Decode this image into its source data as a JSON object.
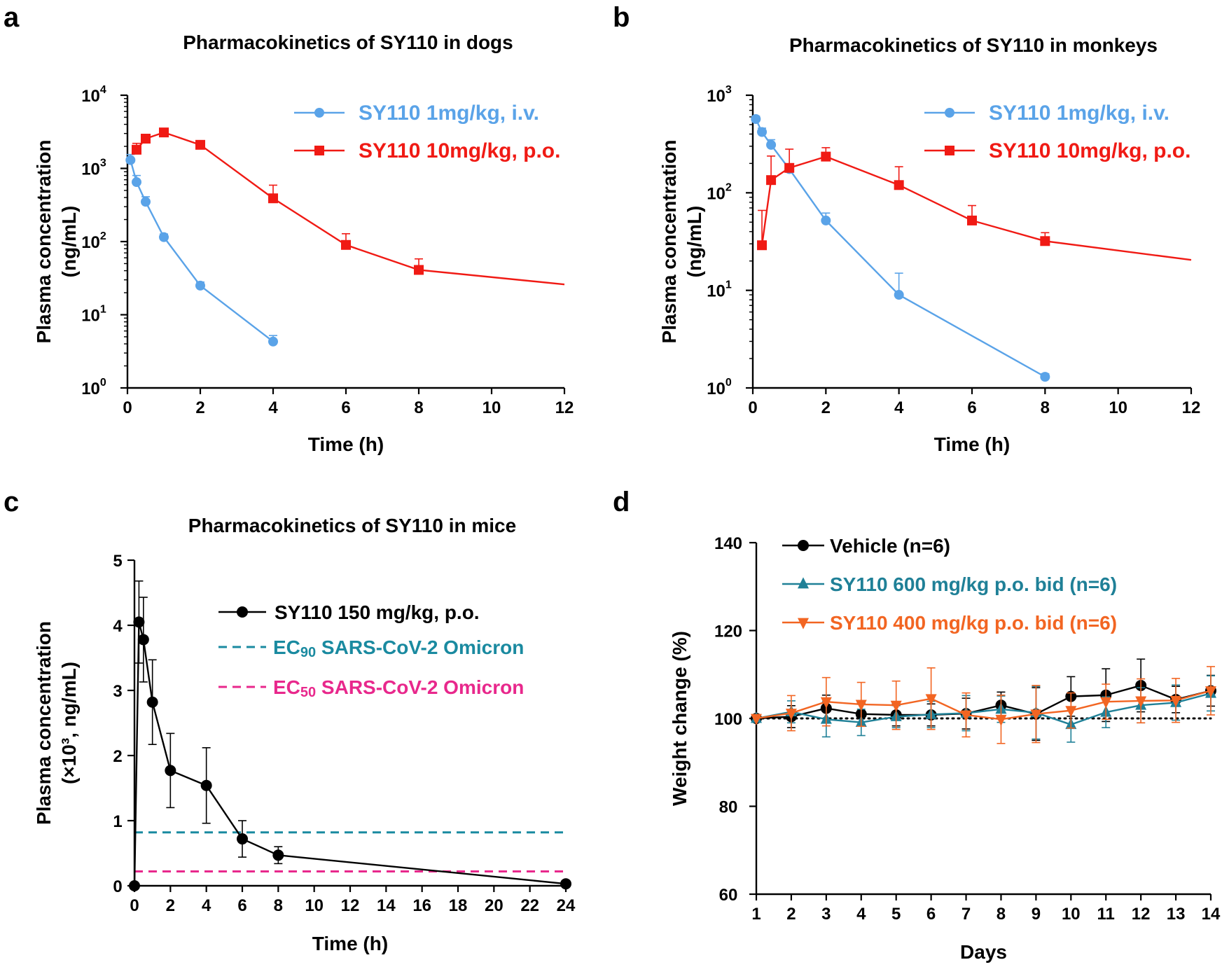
{
  "colors": {
    "axis": "#000000",
    "iv_blue": "#5aa3e8",
    "po_red": "#f01a14",
    "black": "#000000",
    "teal": "#1a8aa0",
    "pink": "#e8288c",
    "vehicle": "#000000",
    "sy600": "#1f8097",
    "sy400": "#f26522"
  },
  "chart_data": [
    {
      "id": "a",
      "panel_label": "a",
      "type": "line",
      "title": "Pharmacokinetics of SY110 in dogs",
      "xlabel": "Time (h)",
      "ylabel_line1": "Plasma  concentration",
      "ylabel_line2": "(ng/mL)",
      "yscale": "log",
      "xlim": [
        0,
        12
      ],
      "ylim": [
        1,
        10000
      ],
      "xticks": [
        0,
        2,
        4,
        6,
        8,
        10,
        12
      ],
      "ytick_labels": [
        {
          "value": 1,
          "base": "10",
          "exp": "0"
        },
        {
          "value": 10,
          "base": "10",
          "exp": "1"
        },
        {
          "value": 100,
          "base": "10",
          "exp": "2"
        },
        {
          "value": 1000,
          "base": "10",
          "exp": "3"
        },
        {
          "value": 10000,
          "base": "10",
          "exp": "4"
        }
      ],
      "series": [
        {
          "name": "SY110 1mg/kg, i.v.",
          "color": "#5aa3e8",
          "marker": "circle",
          "x": [
            0.083,
            0.25,
            0.5,
            1,
            2,
            4
          ],
          "y": [
            1300,
            650,
            350,
            115,
            25,
            4.3
          ],
          "err": [
            250,
            150,
            60,
            12,
            3,
            0.9
          ]
        },
        {
          "name": "SY110 10mg/kg, p.o.",
          "color": "#f01a14",
          "marker": "square",
          "x": [
            0.25,
            0.5,
            1,
            2,
            4,
            6,
            8
          ],
          "y": [
            1800,
            2550,
            3100,
            2100,
            390,
            90,
            41
          ],
          "err": [
            400,
            300,
            250,
            200,
            200,
            38,
            17
          ],
          "extend_to": [
            12,
            26
          ]
        }
      ]
    },
    {
      "id": "b",
      "panel_label": "b",
      "type": "line",
      "title": "Pharmacokinetics of SY110 in monkeys",
      "xlabel": "Time (h)",
      "ylabel_line1": "Plasma  concentration",
      "ylabel_line2": "(ng/mL)",
      "yscale": "log",
      "xlim": [
        0,
        12
      ],
      "ylim": [
        1,
        1000
      ],
      "xticks": [
        0,
        2,
        4,
        6,
        8,
        10,
        12
      ],
      "ytick_labels": [
        {
          "value": 1,
          "base": "10",
          "exp": "0"
        },
        {
          "value": 10,
          "base": "10",
          "exp": "1"
        },
        {
          "value": 100,
          "base": "10",
          "exp": "2"
        },
        {
          "value": 1000,
          "base": "10",
          "exp": "3"
        }
      ],
      "series": [
        {
          "name": "SY110 1mg/kg, i.v.",
          "color": "#5aa3e8",
          "marker": "circle",
          "x": [
            0.083,
            0.25,
            0.5,
            1,
            2,
            4,
            8
          ],
          "y": [
            570,
            420,
            310,
            175,
            52,
            9,
            1.3
          ],
          "err": [
            40,
            40,
            40,
            20,
            10,
            6,
            0.1
          ]
        },
        {
          "name": "SY110 10mg/kg, p.o.",
          "color": "#f01a14",
          "marker": "square",
          "x": [
            0.25,
            0.5,
            1,
            2,
            4,
            6,
            8
          ],
          "y": [
            29,
            135,
            180,
            235,
            120,
            52,
            32
          ],
          "err": [
            37,
            103,
            100,
            55,
            65,
            22,
            7
          ],
          "extend_to": [
            12,
            20.5
          ]
        }
      ]
    },
    {
      "id": "c",
      "panel_label": "c",
      "type": "line",
      "title": "Pharmacokinetics of SY110 in mice",
      "xlabel": "Time (h)",
      "ylabel_line1": "Plasma  concentration",
      "ylabel_line2": "(×10³, ng/mL)",
      "yscale": "linear",
      "xlim": [
        0,
        24
      ],
      "ylim": [
        0,
        5
      ],
      "xticks": [
        0,
        2,
        4,
        6,
        8,
        10,
        12,
        14,
        16,
        18,
        20,
        22,
        24
      ],
      "yticks": [
        0,
        1,
        2,
        3,
        4,
        5
      ],
      "series": [
        {
          "name": "SY110 150 mg/kg, p.o.",
          "color": "#000000",
          "marker": "circle",
          "x": [
            0,
            0.25,
            0.5,
            1,
            2,
            4,
            6,
            8,
            24
          ],
          "y": [
            0,
            4.05,
            3.78,
            2.82,
            1.77,
            1.54,
            0.72,
            0.47,
            0.03
          ],
          "err": [
            0,
            0.63,
            0.65,
            0.65,
            0.57,
            0.58,
            0.28,
            0.13,
            0
          ]
        }
      ],
      "reference_lines": [
        {
          "name_sub": "90",
          "name_rest": "SARS-CoV-2 Omicron",
          "name_prefix": "EC",
          "y": 0.82,
          "color": "#1a8aa0",
          "style": "dashed"
        },
        {
          "name_sub": "50",
          "name_rest": "SARS-CoV-2 Omicron",
          "name_prefix": "EC",
          "y": 0.22,
          "color": "#e8288c",
          "style": "dashed"
        }
      ]
    },
    {
      "id": "d",
      "panel_label": "d",
      "type": "line",
      "title": "",
      "xlabel": "Days",
      "ylabel": "Weight change (%)",
      "yscale": "linear",
      "xlim": [
        1,
        14
      ],
      "ylim": [
        60,
        140
      ],
      "xticks": [
        1,
        2,
        3,
        4,
        5,
        6,
        7,
        8,
        9,
        10,
        11,
        12,
        13,
        14
      ],
      "yticks": [
        60,
        80,
        100,
        120,
        140
      ],
      "reference_line": {
        "y": 100,
        "style": "dotted",
        "color": "#000000"
      },
      "series": [
        {
          "name": "Vehicle (n=6)",
          "color": "#000000",
          "marker": "circle",
          "x": [
            1,
            2,
            3,
            4,
            5,
            6,
            7,
            8,
            9,
            10,
            11,
            12,
            13,
            14
          ],
          "y": [
            100,
            100.4,
            102.3,
            101,
            100.8,
            100.8,
            101.1,
            103,
            101,
            105,
            105.3,
            107.5,
            104.3,
            106.3
          ],
          "err": [
            0,
            2.5,
            3,
            2.5,
            2.5,
            2.5,
            3.5,
            3,
            6,
            4.5,
            6,
            6,
            3,
            3.5
          ]
        },
        {
          "name": "SY110 600 mg/kg p.o. bid (n=6)",
          "color": "#1f8097",
          "marker": "triangle-up",
          "x": [
            1,
            2,
            3,
            4,
            5,
            6,
            7,
            8,
            9,
            10,
            11,
            12,
            13,
            14
          ],
          "y": [
            100,
            101.5,
            99.8,
            99.1,
            100.4,
            100.9,
            101.2,
            102.1,
            101.3,
            98.6,
            101.4,
            103,
            103.6,
            105.7
          ],
          "err": [
            0,
            2.5,
            4,
            3,
            2.5,
            3,
            4,
            3,
            6,
            4,
            3.5,
            4,
            4,
            4
          ]
        },
        {
          "name": "SY110 400 mg/kg p.o. bid (n=6)",
          "color": "#f26522",
          "marker": "triangle-down",
          "x": [
            1,
            2,
            3,
            4,
            5,
            6,
            7,
            8,
            9,
            10,
            11,
            12,
            13,
            14
          ],
          "y": [
            100,
            101.2,
            103.8,
            103.2,
            103,
            104.5,
            100.8,
            99.8,
            101,
            101.8,
            103.8,
            104,
            104.1,
            106.3
          ],
          "err": [
            0,
            4,
            5.5,
            5,
            5.5,
            7,
            5,
            5.5,
            6.5,
            4,
            4,
            5,
            5,
            5.5
          ]
        }
      ]
    }
  ]
}
